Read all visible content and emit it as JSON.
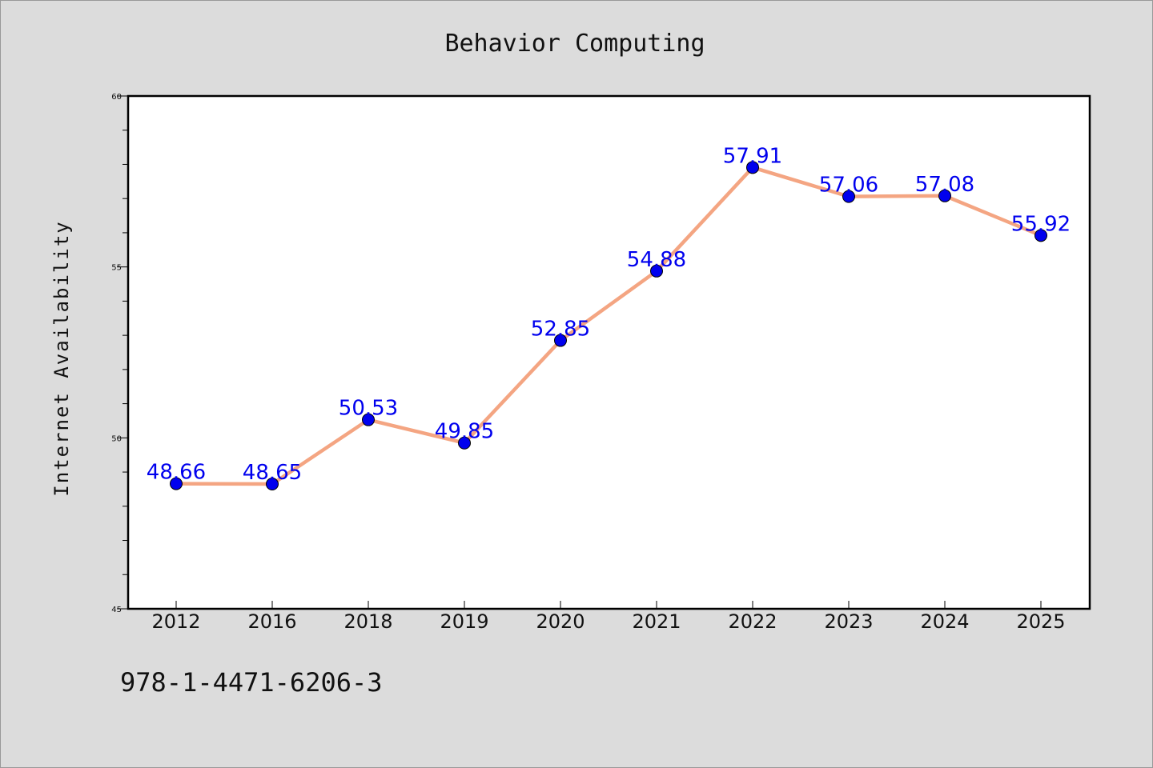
{
  "chart_data": {
    "type": "line",
    "title": "Behavior Computing",
    "xlabel": "",
    "ylabel": "Internet Availability",
    "categories": [
      "2012",
      "2016",
      "2018",
      "2019",
      "2020",
      "2021",
      "2022",
      "2023",
      "2024",
      "2025"
    ],
    "series": [
      {
        "values": [
          48.66,
          48.65,
          50.53,
          49.85,
          52.85,
          54.88,
          57.91,
          57.06,
          57.08,
          55.92
        ],
        "data_labels": [
          "48.66",
          "48.65",
          "50.53",
          "49.85",
          "52.85",
          "54.88",
          "57.91",
          "57.06",
          "57.08",
          "55.92"
        ]
      }
    ],
    "ylim": [
      45,
      60
    ],
    "yticks": [
      "45",
      "50",
      "55",
      "60"
    ],
    "line_color": "#f4a582",
    "marker_color": "#0000ee",
    "label_color": "#0000ee",
    "grid": false,
    "legend": "none"
  },
  "footer": {
    "text": "978-1-4471-6206-3"
  }
}
